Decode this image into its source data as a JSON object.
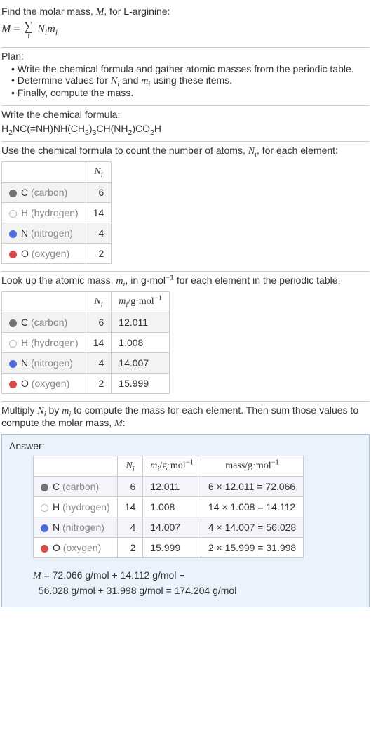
{
  "intro": {
    "line1": "Find the molar mass, ",
    "line1_sym": "M",
    "line1_tail": ", for L-arginine:",
    "formula_lhs": "M",
    "formula_eq": " = ",
    "sigma": "∑",
    "sigma_under": "i",
    "term_N": "N",
    "term_N_sub": "i",
    "term_m": "m",
    "term_m_sub": "i"
  },
  "plan": {
    "title": "Plan:",
    "items": [
      "Write the chemical formula and gather atomic masses from the periodic table.",
      "Determine values for N_i and m_i using these items.",
      "Finally, compute the mass."
    ],
    "item2_pre": "Determine values for ",
    "item2_N": "N",
    "item2_Ni": "i",
    "item2_mid": " and ",
    "item2_m": "m",
    "item2_mi": "i",
    "item2_post": " using these items."
  },
  "chem": {
    "title": "Write the chemical formula:",
    "formula_parts": {
      "p1": "H",
      "s1": "2",
      "p2": "NC(=NH)NH(CH",
      "s2": "2",
      "p3": ")",
      "s3": "3",
      "p4": "CH(NH",
      "s4": "2",
      "p5": ")CO",
      "s5": "2",
      "p6": "H"
    }
  },
  "count": {
    "title_pre": "Use the chemical formula to count the number of atoms, ",
    "title_sym": "N",
    "title_sub": "i",
    "title_post": ", for each element:",
    "header_Ni": "N",
    "header_Ni_sub": "i",
    "elements": [
      {
        "sym": "C",
        "name": "(carbon)",
        "color": "#707070",
        "fill": "#707070",
        "n": "6"
      },
      {
        "sym": "H",
        "name": "(hydrogen)",
        "color": "#bbbbbb",
        "fill": "#ffffff",
        "n": "14"
      },
      {
        "sym": "N",
        "name": "(nitrogen)",
        "color": "#4a6bd8",
        "fill": "#4a6bd8",
        "n": "4"
      },
      {
        "sym": "O",
        "name": "(oxygen)",
        "color": "#d84a4a",
        "fill": "#d84a4a",
        "n": "2"
      }
    ]
  },
  "mass": {
    "title_pre": "Look up the atomic mass, ",
    "title_sym": "m",
    "title_sub": "i",
    "title_mid": ", in g·mol",
    "title_sup": "−1",
    "title_post": " for each element in the periodic table:",
    "header_mi": "m",
    "header_mi_sub": "i",
    "header_unit": "/g·mol",
    "header_unit_sup": "−1",
    "rows": [
      {
        "sym": "C",
        "name": "(carbon)",
        "color": "#707070",
        "fill": "#707070",
        "n": "6",
        "m": "12.011"
      },
      {
        "sym": "H",
        "name": "(hydrogen)",
        "color": "#bbbbbb",
        "fill": "#ffffff",
        "n": "14",
        "m": "1.008"
      },
      {
        "sym": "N",
        "name": "(nitrogen)",
        "color": "#4a6bd8",
        "fill": "#4a6bd8",
        "n": "4",
        "m": "14.007"
      },
      {
        "sym": "O",
        "name": "(oxygen)",
        "color": "#d84a4a",
        "fill": "#d84a4a",
        "n": "2",
        "m": "15.999"
      }
    ]
  },
  "multiply": {
    "text_pre": "Multiply ",
    "N": "N",
    "Ni": "i",
    "text_mid1": " by ",
    "m": "m",
    "mi": "i",
    "text_mid2": " to compute the mass for each element. Then sum those values to compute the molar mass, ",
    "M": "M",
    "text_post": ":"
  },
  "answer": {
    "title": "Answer:",
    "header_mass": "mass/g·mol",
    "header_mass_sup": "−1",
    "rows": [
      {
        "sym": "C",
        "name": "(carbon)",
        "color": "#707070",
        "fill": "#707070",
        "n": "6",
        "m": "12.011",
        "mass": "6 × 12.011 = 72.066"
      },
      {
        "sym": "H",
        "name": "(hydrogen)",
        "color": "#bbbbbb",
        "fill": "#ffffff",
        "n": "14",
        "m": "1.008",
        "mass": "14 × 1.008 = 14.112"
      },
      {
        "sym": "N",
        "name": "(nitrogen)",
        "color": "#4a6bd8",
        "fill": "#4a6bd8",
        "n": "4",
        "m": "14.007",
        "mass": "4 × 14.007 = 56.028"
      },
      {
        "sym": "O",
        "name": "(oxygen)",
        "color": "#d84a4a",
        "fill": "#d84a4a",
        "n": "2",
        "m": "15.999",
        "mass": "2 × 15.999 = 31.998"
      }
    ],
    "final_M": "M",
    "final_line1": " = 72.066 g/mol + 14.112 g/mol + ",
    "final_line2": "56.028 g/mol + 31.998 g/mol = 174.204 g/mol"
  }
}
